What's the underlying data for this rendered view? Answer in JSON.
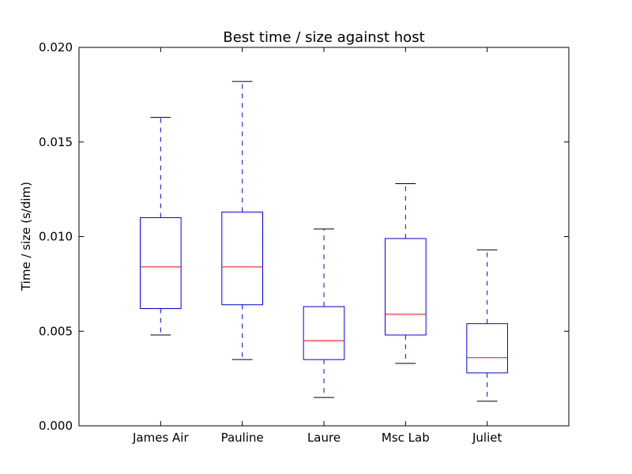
{
  "chart_data": {
    "type": "box",
    "title": "Best time / size against host",
    "xlabel": "",
    "ylabel": "Time / size (s/dim)",
    "ylim": [
      0.0,
      0.02
    ],
    "yticks": [
      0.0,
      0.005,
      0.01,
      0.015,
      0.02
    ],
    "ytick_labels": [
      "0.000",
      "0.005",
      "0.010",
      "0.015",
      "0.020"
    ],
    "grid": false,
    "categories": [
      "James Air",
      "Pauline",
      "Laure",
      "Msc Lab",
      "Juliet"
    ],
    "boxes": [
      {
        "whisker_low": 0.0048,
        "q1": 0.0062,
        "median": 0.0084,
        "q3": 0.011,
        "whisker_high": 0.0163
      },
      {
        "whisker_low": 0.0035,
        "q1": 0.0064,
        "median": 0.0084,
        "q3": 0.0113,
        "whisker_high": 0.0182
      },
      {
        "whisker_low": 0.0015,
        "q1": 0.0035,
        "median": 0.0045,
        "q3": 0.0063,
        "whisker_high": 0.0104
      },
      {
        "whisker_low": 0.0033,
        "q1": 0.0048,
        "median": 0.0059,
        "q3": 0.0099,
        "whisker_high": 0.0128
      },
      {
        "whisker_low": 0.0013,
        "q1": 0.0028,
        "median": 0.0036,
        "q3": 0.0054,
        "whisker_high": 0.0093
      }
    ],
    "colors": {
      "box": "#0000ff",
      "median": "#ff0000",
      "whisker": "#0000ff",
      "cap": "#000000"
    }
  }
}
